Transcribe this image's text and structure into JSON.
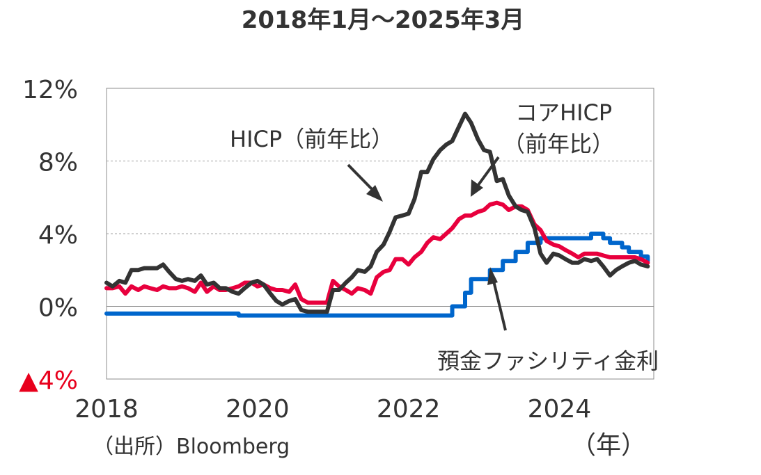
{
  "chart_data": {
    "type": "line",
    "title": "2018年1月～2025年3月",
    "xlabel": "（年）",
    "ylabel": "",
    "source": "（出所）Bloomberg",
    "xlim": [
      2018.0,
      2025.25
    ],
    "ylim": [
      -4,
      12
    ],
    "x_ticks": [
      2018,
      2020,
      2022,
      2024
    ],
    "y_ticks": [
      {
        "value": 12,
        "label": "12%"
      },
      {
        "value": 8,
        "label": "8%"
      },
      {
        "value": 4,
        "label": "4%"
      },
      {
        "value": 0,
        "label": "0%"
      },
      {
        "value": -4,
        "label": "▲4%"
      }
    ],
    "gridlines": [
      8,
      4
    ],
    "zero_line": 0,
    "colors": {
      "hicp": "#333333",
      "core": "#e8003d",
      "deposit": "#0066cc",
      "negative_label": "#e8001c",
      "grid": "#a0a0a0",
      "frame": "#8c8c8c"
    },
    "series": [
      {
        "name": "HICP（前年比）",
        "key": "hicp",
        "x": [
          2018.0,
          2018.08,
          2018.17,
          2018.25,
          2018.33,
          2018.42,
          2018.5,
          2018.58,
          2018.67,
          2018.75,
          2018.83,
          2018.92,
          2019.0,
          2019.08,
          2019.17,
          2019.25,
          2019.33,
          2019.42,
          2019.5,
          2019.58,
          2019.67,
          2019.75,
          2019.83,
          2019.92,
          2020.0,
          2020.08,
          2020.17,
          2020.25,
          2020.33,
          2020.42,
          2020.5,
          2020.58,
          2020.67,
          2020.75,
          2020.83,
          2020.92,
          2021.0,
          2021.08,
          2021.17,
          2021.25,
          2021.33,
          2021.42,
          2021.5,
          2021.58,
          2021.67,
          2021.75,
          2021.83,
          2021.92,
          2022.0,
          2022.08,
          2022.17,
          2022.25,
          2022.33,
          2022.42,
          2022.5,
          2022.58,
          2022.67,
          2022.75,
          2022.83,
          2022.92,
          2023.0,
          2023.08,
          2023.17,
          2023.25,
          2023.33,
          2023.42,
          2023.5,
          2023.58,
          2023.67,
          2023.75,
          2023.83,
          2023.92,
          2024.0,
          2024.08,
          2024.17,
          2024.25,
          2024.33,
          2024.42,
          2024.5,
          2024.58,
          2024.67,
          2024.75,
          2024.83,
          2024.92,
          2025.0,
          2025.08,
          2025.17
        ],
        "values": [
          1.3,
          1.1,
          1.4,
          1.3,
          2.0,
          2.0,
          2.1,
          2.1,
          2.1,
          2.3,
          1.9,
          1.5,
          1.4,
          1.5,
          1.4,
          1.7,
          1.2,
          1.3,
          1.0,
          1.0,
          0.8,
          0.7,
          1.0,
          1.3,
          1.4,
          1.2,
          0.7,
          0.3,
          0.1,
          0.3,
          0.4,
          -0.2,
          -0.3,
          -0.3,
          -0.3,
          -0.3,
          0.9,
          0.9,
          1.3,
          1.6,
          2.0,
          1.9,
          2.2,
          3.0,
          3.4,
          4.1,
          4.9,
          5.0,
          5.1,
          5.9,
          7.4,
          7.4,
          8.1,
          8.6,
          8.9,
          9.1,
          9.9,
          10.6,
          10.1,
          9.2,
          8.6,
          8.5,
          6.9,
          7.0,
          6.1,
          5.5,
          5.3,
          5.2,
          4.3,
          2.9,
          2.4,
          2.9,
          2.8,
          2.6,
          2.4,
          2.4,
          2.6,
          2.5,
          2.6,
          2.2,
          1.7,
          2.0,
          2.2,
          2.4,
          2.5,
          2.3,
          2.2
        ]
      },
      {
        "name": "コアHICP（前年比）",
        "key": "core",
        "x": [
          2018.0,
          2018.08,
          2018.17,
          2018.25,
          2018.33,
          2018.42,
          2018.5,
          2018.58,
          2018.67,
          2018.75,
          2018.83,
          2018.92,
          2019.0,
          2019.08,
          2019.17,
          2019.25,
          2019.33,
          2019.42,
          2019.5,
          2019.58,
          2019.67,
          2019.75,
          2019.83,
          2019.92,
          2020.0,
          2020.08,
          2020.17,
          2020.25,
          2020.33,
          2020.42,
          2020.5,
          2020.58,
          2020.67,
          2020.75,
          2020.83,
          2020.92,
          2021.0,
          2021.08,
          2021.17,
          2021.25,
          2021.33,
          2021.42,
          2021.5,
          2021.58,
          2021.67,
          2021.75,
          2021.83,
          2021.92,
          2022.0,
          2022.08,
          2022.17,
          2022.25,
          2022.33,
          2022.42,
          2022.5,
          2022.58,
          2022.67,
          2022.75,
          2022.83,
          2022.92,
          2023.0,
          2023.08,
          2023.17,
          2023.25,
          2023.33,
          2023.42,
          2023.5,
          2023.58,
          2023.67,
          2023.75,
          2023.83,
          2023.92,
          2024.0,
          2024.08,
          2024.17,
          2024.25,
          2024.33,
          2024.42,
          2024.5,
          2024.58,
          2024.67,
          2024.75,
          2024.83,
          2024.92,
          2025.0,
          2025.08,
          2025.17
        ],
        "values": [
          1.0,
          1.0,
          1.1,
          0.7,
          1.1,
          0.9,
          1.1,
          1.0,
          0.9,
          1.1,
          1.0,
          1.0,
          1.1,
          1.0,
          0.8,
          1.3,
          0.8,
          1.1,
          0.9,
          0.9,
          1.0,
          1.1,
          1.3,
          1.3,
          1.1,
          1.2,
          1.0,
          0.9,
          0.9,
          0.8,
          1.2,
          0.4,
          0.2,
          0.2,
          0.2,
          0.2,
          1.4,
          1.1,
          0.9,
          0.7,
          1.0,
          0.9,
          0.7,
          1.6,
          1.9,
          2.0,
          2.6,
          2.6,
          2.3,
          2.7,
          3.0,
          3.5,
          3.8,
          3.7,
          4.0,
          4.3,
          4.8,
          5.0,
          5.0,
          5.2,
          5.3,
          5.6,
          5.7,
          5.6,
          5.3,
          5.5,
          5.5,
          5.3,
          4.5,
          4.2,
          3.6,
          3.4,
          3.3,
          3.1,
          2.9,
          2.7,
          2.9,
          2.9,
          2.9,
          2.8,
          2.7,
          2.7,
          2.7,
          2.7,
          2.7,
          2.6,
          2.4
        ]
      },
      {
        "name": "預金ファシリティ金利",
        "key": "deposit",
        "x": [
          2018.0,
          2019.67,
          2019.75,
          2022.42,
          2022.58,
          2022.67,
          2022.75,
          2022.83,
          2022.92,
          2023.08,
          2023.25,
          2023.42,
          2023.58,
          2023.75,
          2024.42,
          2024.58,
          2024.67,
          2024.83,
          2024.92,
          2025.08,
          2025.17
        ],
        "values": [
          -0.4,
          -0.4,
          -0.5,
          -0.5,
          0.0,
          0.0,
          0.75,
          1.5,
          1.5,
          2.0,
          2.5,
          3.0,
          3.5,
          3.75,
          4.0,
          3.75,
          3.5,
          3.25,
          3.0,
          2.75,
          2.5
        ]
      }
    ],
    "annotations": {
      "hicp": "HICP（前年比）",
      "core_line1": "コアHICP",
      "core_line2": "（前年比）",
      "deposit": "預金ファシリティ金利"
    }
  }
}
